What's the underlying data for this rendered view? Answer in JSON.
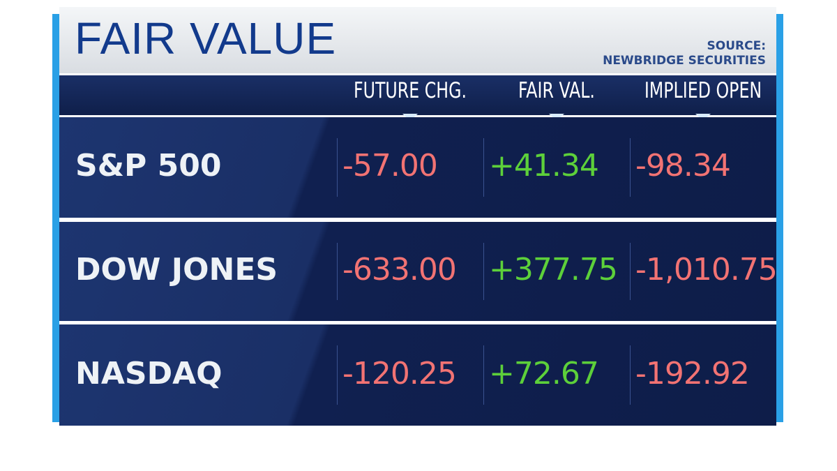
{
  "header": {
    "title": "FAIR VALUE",
    "source_label": "SOURCE:",
    "source_name": "NEWBRIDGE SECURITIES"
  },
  "table": {
    "columns": [
      "FUTURE CHG.",
      "FAIR VAL.",
      "IMPLIED OPEN"
    ],
    "rows": [
      {
        "label": "S&P 500",
        "values": [
          "-57.00",
          "+41.34",
          "-98.34"
        ]
      },
      {
        "label": "DOW JONES",
        "values": [
          "-633.00",
          "+377.75",
          "-1,010.75"
        ]
      },
      {
        "label": "NASDAQ",
        "values": [
          "-120.25",
          "+72.67",
          "-192.92"
        ]
      }
    ]
  }
}
